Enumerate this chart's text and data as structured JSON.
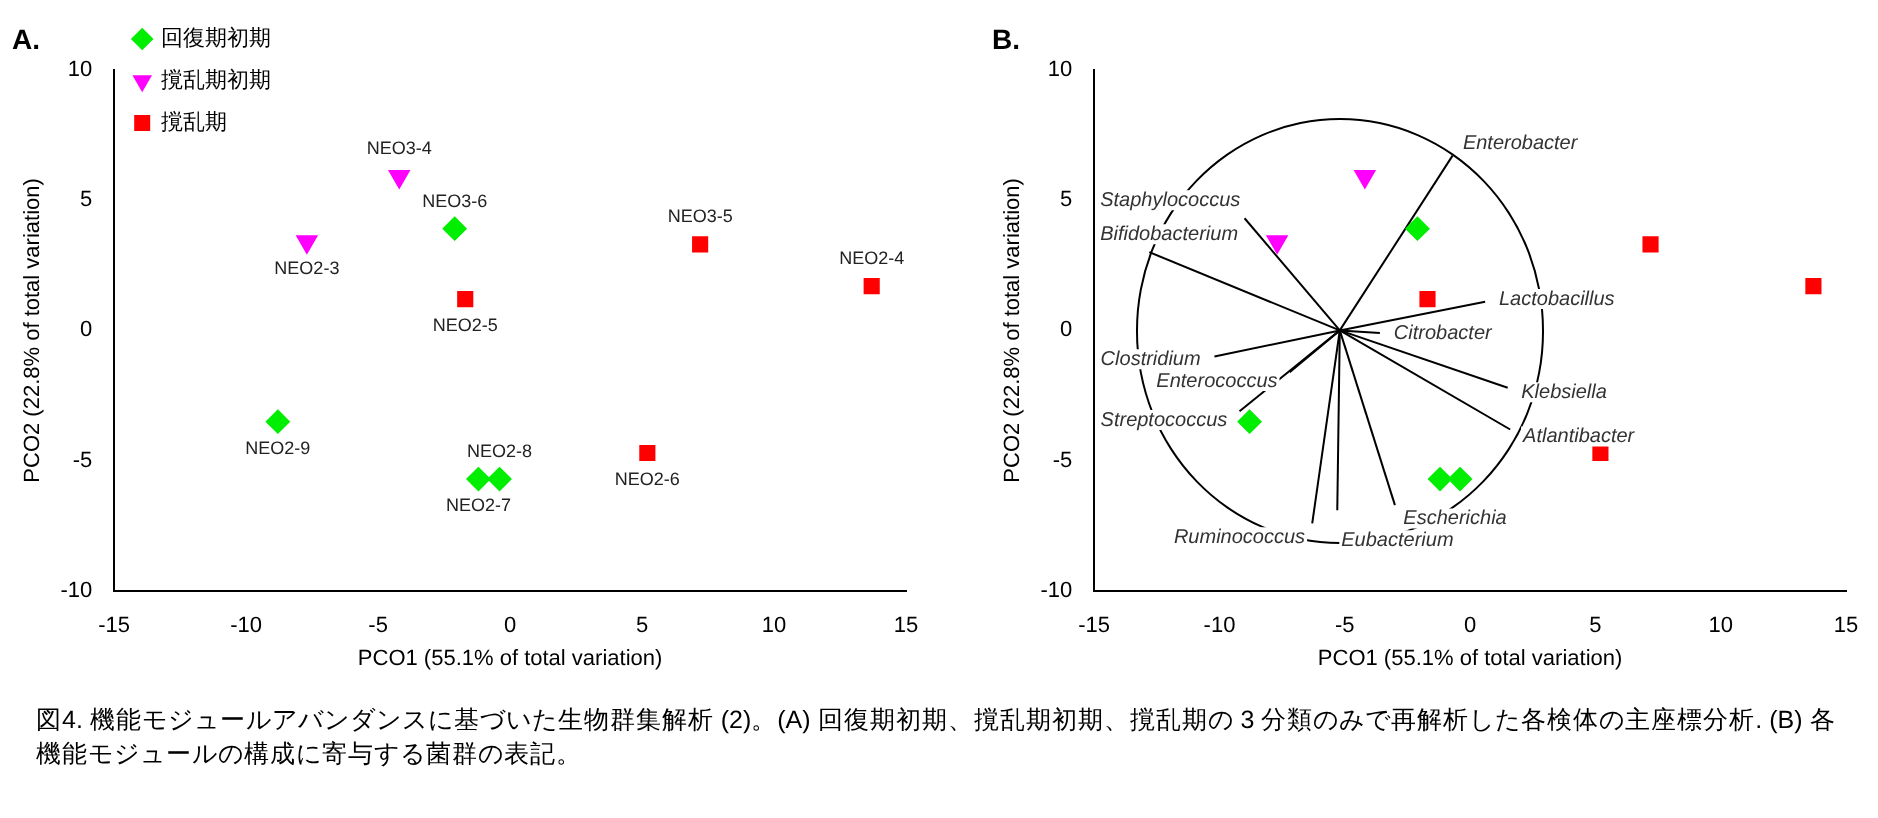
{
  "chart_data": [
    {
      "type": "scatter",
      "title": "A.",
      "xlabel": "PCO1 (55.1% of total variation)",
      "ylabel": "PCO2 (22.8% of total variation)",
      "xlim": [
        -15,
        15
      ],
      "xticks": [
        -15,
        -10,
        -5,
        0,
        5,
        10,
        15
      ],
      "ylim": [
        -10,
        10
      ],
      "yticks": [
        -10,
        -5,
        0,
        5,
        10
      ],
      "grid": false,
      "legend": "top left",
      "annotations": [
        "図4. 機能モジュールアバンダンスに基づいた生物群集解析 (2)。(A) 回復期初期、撹乱期初期、撹乱期の 3 分類のみで再解析した各検体の主座標分析. (B) 各機能モジュールの構成に寄与する菌群の表記。"
      ],
      "series": [
        {
          "name": "回復期初期",
          "color": "#00ee00",
          "marker": "diamond",
          "x": [
            -2.1,
            -8.8,
            -0.4,
            -1.2
          ],
          "values": [
            3.9,
            -3.5,
            -5.7,
            -5.7
          ],
          "value_labels": [
            "NEO3-6",
            "NEO2-9",
            "NEO2-8",
            "NEO2-7"
          ]
        },
        {
          "name": "撹乱期初期",
          "color": "#ff00ff",
          "marker": "triangle",
          "x": [
            -4.2,
            -7.7
          ],
          "values": [
            5.9,
            3.4
          ],
          "value_labels": [
            "NEO3-4",
            "NEO2-3"
          ]
        },
        {
          "name": "撹乱期",
          "color": "#ff0000",
          "marker": "square",
          "x": [
            7.2,
            -1.7,
            13.7,
            5.2
          ],
          "values": [
            3.3,
            1.2,
            1.7,
            -4.7
          ],
          "value_labels": [
            "NEO3-5",
            "NEO2-5",
            "NEO2-4",
            "NEO2-6"
          ]
        }
      ]
    },
    {
      "type": "scatter",
      "title": "B.",
      "xlabel": "PCO1 (55.1% of total variation)",
      "ylabel": "PCO2 (22.8% of total variation)",
      "xlim": [
        -15,
        15
      ],
      "xticks": [
        -15,
        -10,
        -5,
        0,
        5,
        10,
        15
      ],
      "ylim": [
        -10,
        10
      ],
      "yticks": [
        -10,
        -5,
        0,
        5,
        10
      ],
      "grid": false,
      "legend": false,
      "series": [
        {
          "color": "#00ee00",
          "marker": "diamond",
          "x": [
            -2.1,
            -8.8,
            -0.4,
            -1.2
          ],
          "values": [
            3.9,
            -3.5,
            -5.7,
            -5.7
          ]
        },
        {
          "color": "#ff00ff",
          "marker": "triangle",
          "x": [
            -4.2,
            -7.7
          ],
          "values": [
            5.9,
            3.4
          ]
        },
        {
          "color": "#ff0000",
          "marker": "square",
          "x": [
            7.2,
            -1.7,
            13.7,
            5.2
          ],
          "values": [
            3.3,
            1.2,
            1.7,
            -4.7
          ]
        },
        {
          "type": "line",
          "name": "Enterobacter",
          "color": "#000000",
          "x": [
            -5.2,
            -0.7
          ],
          "values": [
            0,
            6.7
          ]
        },
        {
          "type": "line",
          "name": "Staphylococcus",
          "color": "#000000",
          "x": [
            -5.2,
            -9.0
          ],
          "values": [
            0,
            4.3
          ]
        },
        {
          "type": "line",
          "name": "Bifidobacterium",
          "color": "#000000",
          "x": [
            -5.2,
            -12.8
          ],
          "values": [
            0,
            3.0
          ]
        },
        {
          "type": "line",
          "name": "Lactobacillus",
          "color": "#000000",
          "x": [
            -5.2,
            0.6
          ],
          "values": [
            0,
            1.1
          ]
        },
        {
          "type": "line",
          "name": "Citrobacter",
          "color": "#000000",
          "x": [
            -5.2,
            -3.6
          ],
          "values": [
            0,
            -0.1
          ]
        },
        {
          "type": "line",
          "name": "Clostridium",
          "color": "#000000",
          "x": [
            -5.2,
            -10.2
          ],
          "values": [
            0,
            -1.0
          ]
        },
        {
          "type": "line",
          "name": "Klebsiella",
          "color": "#000000",
          "x": [
            -5.2,
            1.5
          ],
          "values": [
            0,
            -2.2
          ]
        },
        {
          "type": "line",
          "name": "Atlantibacter",
          "color": "#000000",
          "x": [
            -5.2,
            1.6
          ],
          "values": [
            0,
            -3.8
          ]
        },
        {
          "type": "line",
          "name": "Enterococcus",
          "color": "#000000",
          "x": [
            -5.2,
            -7.2
          ],
          "values": [
            0,
            -1.6
          ]
        },
        {
          "type": "line",
          "name": "Streptococcus",
          "color": "#000000",
          "x": [
            -5.2,
            -9.2
          ],
          "values": [
            0,
            -3.1
          ]
        },
        {
          "type": "line",
          "name": "Ruminococcus",
          "color": "#000000",
          "x": [
            -5.2,
            -6.3
          ],
          "values": [
            0,
            -7.4
          ]
        },
        {
          "type": "line",
          "name": "Eubacterium",
          "color": "#000000",
          "x": [
            -5.2,
            -5.3
          ],
          "values": [
            0,
            -6.9
          ]
        },
        {
          "type": "line",
          "name": "Escherichia",
          "color": "#000000",
          "x": [
            -5.2,
            -3.0
          ],
          "values": [
            0,
            -6.7
          ]
        }
      ]
    }
  ]
}
